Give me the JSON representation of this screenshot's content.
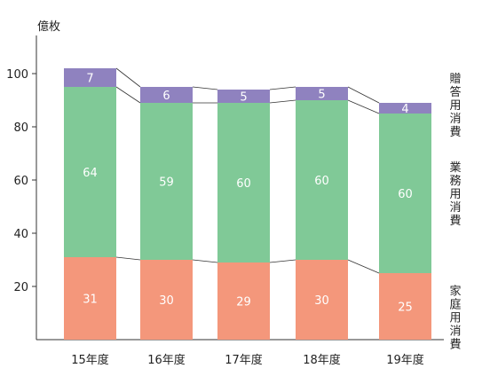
{
  "chart_data": {
    "type": "bar",
    "stacked": true,
    "unit_label": "億枚",
    "categories": [
      "15年度",
      "16年度",
      "17年度",
      "18年度",
      "19年度"
    ],
    "yticks": [
      20,
      40,
      60,
      80,
      100
    ],
    "ylim": [
      0,
      110
    ],
    "series": [
      {
        "name": "家庭用消費",
        "color": "#f4977b",
        "values": [
          31,
          30,
          29,
          30,
          25
        ]
      },
      {
        "name": "業務用消費",
        "color": "#80c997",
        "values": [
          64,
          59,
          60,
          60,
          60
        ]
      },
      {
        "name": "贈答用消費",
        "color": "#8f82bf",
        "values": [
          7,
          6,
          5,
          5,
          4
        ]
      }
    ],
    "connector_lines": true,
    "grid": false,
    "legend_position": "right"
  }
}
